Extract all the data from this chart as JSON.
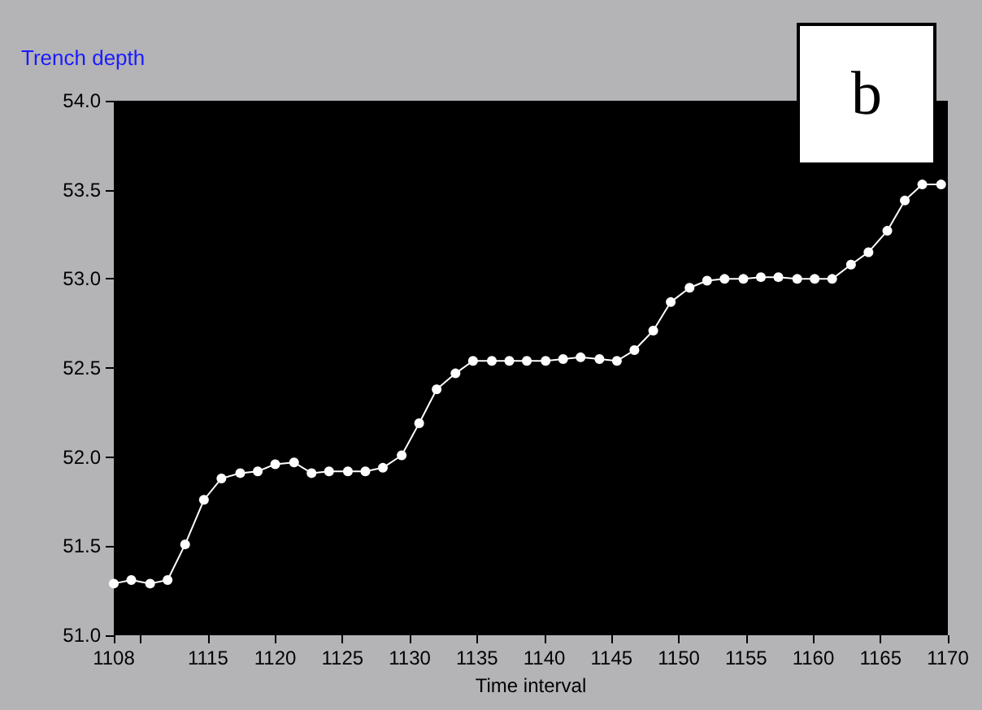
{
  "chart_data": {
    "type": "line",
    "title": "Trench depth",
    "xlabel": "Time interval",
    "annotations": [
      "b"
    ],
    "x": [
      1108,
      1109.3,
      1110.7,
      1112.0,
      1113.3,
      1114.7,
      1116.0,
      1117.4,
      1118.7,
      1120.0,
      1121.4,
      1122.7,
      1124.0,
      1125.4,
      1126.7,
      1128.0,
      1129.4,
      1130.7,
      1132.0,
      1133.4,
      1134.7,
      1136.1,
      1137.4,
      1138.7,
      1140.1,
      1141.4,
      1142.7,
      1144.1,
      1145.4,
      1146.7,
      1148.1,
      1149.4,
      1150.8,
      1152.1,
      1153.4,
      1154.8,
      1156.1,
      1157.4,
      1158.8,
      1160.1,
      1161.4,
      1162.8,
      1164.1,
      1165.5,
      1166.8,
      1168.1,
      1169.5
    ],
    "series": [
      {
        "color": "#ffffff",
        "values": [
          51.29,
          51.31,
          51.29,
          51.31,
          51.51,
          51.76,
          51.88,
          51.91,
          51.92,
          51.96,
          51.97,
          51.91,
          51.92,
          51.92,
          51.92,
          51.94,
          52.01,
          52.19,
          52.38,
          52.47,
          52.54,
          52.54,
          52.54,
          52.54,
          52.54,
          52.55,
          52.56,
          52.55,
          52.54,
          52.6,
          52.71,
          52.87,
          52.95,
          52.99,
          53.0,
          53.0,
          53.01,
          53.01,
          53.0,
          53.0,
          53.0,
          53.08,
          53.15,
          53.27,
          53.44,
          53.53,
          53.53
        ]
      }
    ],
    "xlim": [
      1108,
      1170
    ],
    "xticks": [
      1108,
      {
        "value": 1110,
        "label": null
      },
      1115,
      1120,
      1125,
      1130,
      1135,
      1140,
      1145,
      1150,
      1155,
      1160,
      1165,
      1170
    ],
    "ylim": [
      51,
      54
    ],
    "yticks": [
      {
        "value": 51,
        "label": "51.0"
      },
      {
        "value": 51.5,
        "label": "51.5"
      },
      {
        "value": 52,
        "label": "52.0"
      },
      {
        "value": 52.5,
        "label": "52.5"
      },
      {
        "value": 53,
        "label": "53.0"
      },
      {
        "value": 53.5,
        "label": "53.5"
      },
      {
        "value": 54,
        "label": "54.0"
      }
    ],
    "grid": false,
    "marker": "circle",
    "line_style": "solid"
  }
}
